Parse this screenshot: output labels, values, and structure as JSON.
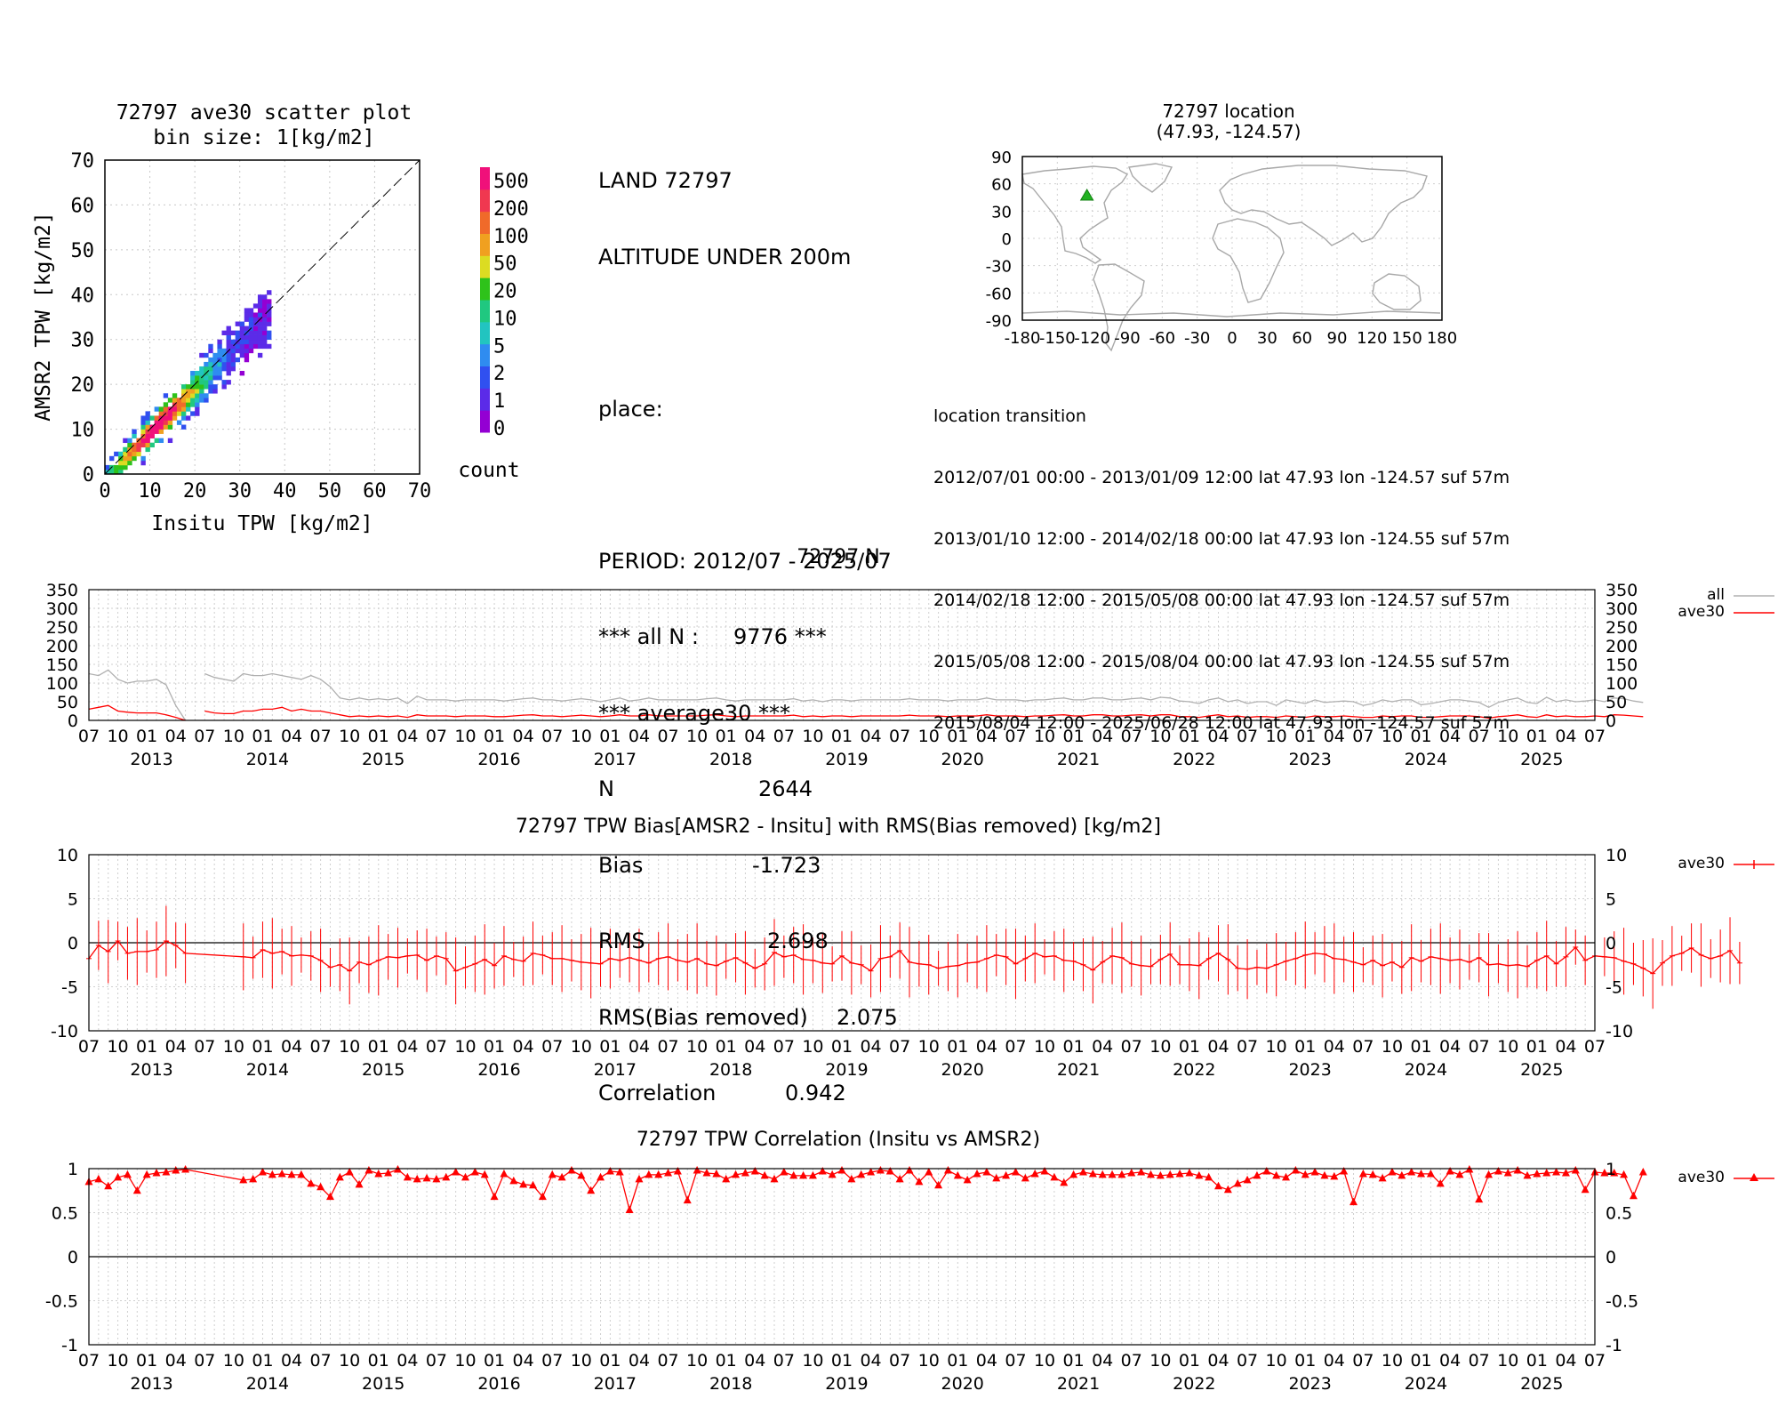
{
  "station": {
    "header_lines": [
      "LAND 72797",
      "ALTITUDE UNDER 200m",
      "",
      "place:",
      ""
    ],
    "stats": [
      {
        "label": "PERIOD: 2012/07 - 2025/07",
        "value": ""
      },
      {
        "label": "*** all N :",
        "value": "9776 ***"
      },
      {
        "label": "*** average30 ***",
        "value": ""
      },
      {
        "label": "N",
        "value": "2644"
      },
      {
        "label": "Bias",
        "value": "-1.723"
      },
      {
        "label": "RMS",
        "value": "2.698"
      },
      {
        "label": "RMS(Bias removed)",
        "value": "2.075"
      },
      {
        "label": "Correlation",
        "value": "0.942"
      }
    ]
  },
  "location_transition": {
    "title": "location transition",
    "lines": [
      "2012/07/01 00:00 - 2013/01/09 12:00 lat 47.93 lon -124.57 suf 57m",
      "2013/01/10 12:00 - 2014/02/18 00:00 lat 47.93 lon -124.55 suf 57m",
      "2014/02/18 12:00 - 2015/05/08 00:00 lat 47.93 lon -124.57 suf 57m",
      "2015/05/08 12:00 - 2015/08/04 00:00 lat 47.93 lon -124.55 suf 57m",
      "2015/08/04 12:00 - 2025/06/28 12:00 lat 47.93 lon -124.57 suf 57m"
    ]
  },
  "chart_data": [
    {
      "type": "heatmap",
      "title": "72797 ave30 scatter plot",
      "subtitle": "bin size: 1[kg/m2]",
      "xlabel": "Insitu TPW [kg/m2]",
      "ylabel": "AMSR2 TPW [kg/m2]",
      "xlim": [
        0,
        70
      ],
      "ylim": [
        0,
        70
      ],
      "xticks": [
        0,
        10,
        20,
        30,
        40,
        50,
        60,
        70
      ],
      "yticks": [
        0,
        10,
        20,
        30,
        40,
        50,
        60,
        70
      ],
      "diagonal": "1:1 dashed line",
      "colorbar": {
        "label": "count",
        "ticks": [
          "0",
          "1",
          "2",
          "5",
          "10",
          "20",
          "50",
          "100",
          "200",
          "500"
        ],
        "colors": [
          "#9400d3",
          "#5b2be8",
          "#3050f0",
          "#2f8cf0",
          "#22c4c0",
          "#20c880",
          "#2ec21a",
          "#dcdc22",
          "#f0a020",
          "#f06a2a",
          "#f03850",
          "#f0107a"
        ]
      },
      "note": "dense cluster along the 1:1 line from about 2 to 37 kg/m2, AMSR2 slightly below Insitu"
    },
    {
      "type": "map",
      "title": "72797 location",
      "subtitle": "(47.93, -124.57)",
      "marker": {
        "lat": 47.93,
        "lon": -124.57,
        "color": "#22b222",
        "symbol": "triangle"
      },
      "xticks": [
        -180,
        -150,
        -120,
        -90,
        -60,
        -30,
        0,
        30,
        60,
        90,
        120,
        150,
        180
      ],
      "yticks": [
        90,
        60,
        30,
        0,
        -30,
        -60,
        -90
      ]
    },
    {
      "type": "line",
      "title": "72797 N",
      "ylim": [
        0,
        350
      ],
      "yticks": [
        0,
        50,
        100,
        150,
        200,
        250,
        300,
        350
      ],
      "x_month_labels": [
        "07",
        "10",
        "01",
        "04"
      ],
      "years": [
        "2013",
        "2014",
        "2015",
        "2016",
        "2017",
        "2018",
        "2019",
        "2020",
        "2021",
        "2022",
        "2023",
        "2024",
        "2025"
      ],
      "series": [
        {
          "name": "all",
          "color": "#b0b0b0",
          "values": [
            125,
            120,
            135,
            110,
            100,
            105,
            105,
            110,
            95,
            40,
            0,
            null,
            125,
            115,
            110,
            105,
            125,
            120,
            120,
            125,
            120,
            115,
            110,
            120,
            110,
            90,
            60,
            55,
            60,
            55,
            58,
            55,
            60,
            45,
            65,
            55,
            55,
            55,
            52,
            55,
            55,
            55,
            55,
            52,
            55,
            58,
            60,
            55,
            55,
            52,
            55,
            58,
            55,
            50,
            55,
            60,
            52,
            55,
            60,
            55,
            55,
            55,
            55,
            55,
            58,
            60,
            55,
            52,
            55,
            55,
            55,
            55,
            55,
            58,
            52,
            55,
            50,
            55,
            55,
            52,
            55,
            55,
            55,
            55,
            55,
            58,
            55,
            55,
            55,
            52,
            55,
            55,
            55,
            60,
            55,
            55,
            55,
            52,
            55,
            55,
            58,
            60,
            55,
            55,
            60,
            60,
            55,
            55,
            58,
            60,
            55,
            62,
            60,
            52,
            50,
            45,
            55,
            60,
            50,
            55,
            45,
            50,
            50,
            40,
            55,
            50,
            45,
            55,
            48,
            50,
            52,
            50,
            40,
            45,
            55,
            50,
            55,
            55,
            42,
            45,
            50,
            55,
            55,
            52,
            48,
            35,
            48,
            55,
            60,
            48,
            45,
            62,
            50,
            55,
            50,
            52,
            55,
            50,
            60,
            58,
            52,
            48
          ]
        },
        {
          "name": "ave30",
          "color": "#ff0000",
          "values": [
            30,
            35,
            40,
            25,
            22,
            20,
            20,
            20,
            15,
            8,
            0,
            null,
            25,
            20,
            18,
            18,
            25,
            25,
            30,
            30,
            35,
            25,
            30,
            25,
            25,
            20,
            15,
            10,
            12,
            10,
            12,
            10,
            12,
            8,
            15,
            12,
            12,
            12,
            10,
            12,
            12,
            12,
            10,
            10,
            12,
            14,
            15,
            12,
            12,
            10,
            12,
            14,
            12,
            10,
            12,
            15,
            12,
            12,
            15,
            12,
            12,
            12,
            12,
            12,
            14,
            15,
            12,
            10,
            12,
            12,
            12,
            12,
            12,
            14,
            10,
            12,
            10,
            12,
            12,
            10,
            12,
            12,
            12,
            12,
            12,
            14,
            12,
            12,
            12,
            10,
            12,
            12,
            12,
            15,
            12,
            12,
            12,
            10,
            12,
            12,
            14,
            15,
            12,
            12,
            15,
            15,
            12,
            12,
            14,
            15,
            12,
            15,
            15,
            10,
            10,
            8,
            12,
            15,
            10,
            12,
            8,
            10,
            10,
            8,
            12,
            10,
            8,
            12,
            10,
            10,
            12,
            10,
            8,
            8,
            12,
            10,
            12,
            12,
            8,
            8,
            10,
            12,
            12,
            12,
            10,
            6,
            10,
            12,
            15,
            10,
            8,
            15,
            10,
            12,
            10,
            10,
            12,
            10,
            15,
            14,
            12,
            10
          ]
        }
      ]
    },
    {
      "type": "line",
      "title": "72797 TPW Bias[AMSR2 - Insitu] with RMS(Bias removed) [kg/m2]",
      "ylim": [
        -10,
        10
      ],
      "yticks": [
        -10,
        -5,
        0,
        5,
        10
      ],
      "x_month_labels": [
        "07",
        "10",
        "01",
        "04"
      ],
      "years": [
        "2013",
        "2014",
        "2015",
        "2016",
        "2017",
        "2018",
        "2019",
        "2020",
        "2021",
        "2022",
        "2023",
        "2024",
        "2025"
      ],
      "series": [
        {
          "name": "ave30",
          "color": "#ff0000",
          "marker": "+",
          "error_bars": "RMS(Bias removed)",
          "values": [
            -1.8,
            -0.3,
            -1.0,
            0.2,
            -1.2,
            -1.0,
            -1.0,
            -0.8,
            0.2,
            -0.3,
            -1.2,
            null,
            null,
            null,
            null,
            null,
            -1.6,
            -1.7,
            -0.8,
            -1.2,
            -1.0,
            -1.5,
            -1.4,
            -1.5,
            -2.0,
            -2.8,
            -2.5,
            -3.2,
            -2.2,
            -2.5,
            -2.0,
            -1.6,
            -1.7,
            -1.5,
            -1.4,
            -2.0,
            -1.5,
            -1.8,
            -3.2,
            -2.8,
            -2.4,
            -1.9,
            -2.6,
            -1.5,
            -1.9,
            -2.1,
            -1.2,
            -1.4,
            -1.8,
            -1.8,
            -2.0,
            -2.2,
            -2.3,
            -2.4,
            -1.8,
            -2.0,
            -1.7,
            -2.0,
            -2.3,
            -1.8,
            -1.6,
            -2.0,
            -2.2,
            -1.8,
            -2.4,
            -2.6,
            -2.1,
            -1.7,
            -2.3,
            -2.9,
            -2.4,
            -1.1,
            -1.6,
            -1.4,
            -1.9,
            -2.0,
            -2.3,
            -2.4,
            -1.5,
            -2.3,
            -2.5,
            -3.2,
            -1.8,
            -1.6,
            -0.9,
            -2.2,
            -2.4,
            -2.5,
            -2.9,
            -2.7,
            -2.6,
            -2.3,
            -2.2,
            -1.8,
            -1.4,
            -1.6,
            -2.4,
            -1.8,
            -1.2,
            -1.6,
            -1.5,
            -2.0,
            -2.1,
            -2.5,
            -3.1,
            -2.2,
            -1.5,
            -1.7,
            -2.4,
            -2.6,
            -2.7,
            -1.9,
            -1.3,
            -2.5,
            -2.5,
            -2.6,
            -1.8,
            -1.2,
            -1.9,
            -2.9,
            -3.0,
            -2.8,
            -2.9,
            -2.5,
            -2.1,
            -1.8,
            -1.4,
            -1.2,
            -1.3,
            -1.8,
            -1.9,
            -2.2,
            -2.5,
            -2.0,
            -2.6,
            -2.2,
            -2.8,
            -1.7,
            -2.1,
            -1.6,
            -1.8,
            -2.0,
            -1.9,
            -2.2,
            -1.7,
            -2.5,
            -2.4,
            -2.6,
            -2.5,
            -2.7,
            -2.0,
            -1.5,
            -2.4,
            -1.6,
            -0.5,
            -2.0,
            -1.5,
            -1.6,
            -1.7,
            -2.1,
            -2.4,
            -2.9,
            -3.5,
            -2.3,
            -1.5,
            -1.2,
            -0.6,
            -1.4,
            -1.8,
            -1.5,
            -0.9,
            -2.3
          ]
        }
      ]
    },
    {
      "type": "line",
      "title": "72797 TPW Correlation (Insitu vs AMSR2)",
      "ylim": [
        -1,
        1
      ],
      "yticks": [
        -1,
        -0.5,
        0,
        0.5,
        1
      ],
      "x_month_labels": [
        "07",
        "10",
        "01",
        "04"
      ],
      "years": [
        "2013",
        "2014",
        "2015",
        "2016",
        "2017",
        "2018",
        "2019",
        "2020",
        "2021",
        "2022",
        "2023",
        "2024",
        "2025"
      ],
      "series": [
        {
          "name": "ave30",
          "color": "#ff0000",
          "marker": "triangle",
          "values": [
            0.85,
            0.88,
            0.8,
            0.9,
            0.93,
            0.75,
            0.93,
            0.95,
            0.96,
            0.98,
            0.99,
            null,
            null,
            null,
            null,
            null,
            0.87,
            0.88,
            0.96,
            0.93,
            0.94,
            0.93,
            0.93,
            0.83,
            0.79,
            0.68,
            0.9,
            0.96,
            0.82,
            0.98,
            0.94,
            0.95,
            0.99,
            0.9,
            0.88,
            0.89,
            0.88,
            0.9,
            0.96,
            0.9,
            0.96,
            0.93,
            0.68,
            0.94,
            0.86,
            0.82,
            0.81,
            0.68,
            0.93,
            0.9,
            0.98,
            0.92,
            0.75,
            0.9,
            0.97,
            0.96,
            0.53,
            0.88,
            0.93,
            0.93,
            0.95,
            0.97,
            0.64,
            0.98,
            0.95,
            0.94,
            0.88,
            0.93,
            0.95,
            0.97,
            0.92,
            0.88,
            0.96,
            0.92,
            0.92,
            0.92,
            0.97,
            0.93,
            0.98,
            0.88,
            0.93,
            0.96,
            0.98,
            0.97,
            0.88,
            0.98,
            0.85,
            0.96,
            0.81,
            0.98,
            0.92,
            0.87,
            0.94,
            0.96,
            0.89,
            0.92,
            0.96,
            0.89,
            0.94,
            0.97,
            0.9,
            0.84,
            0.93,
            0.96,
            0.94,
            0.93,
            0.93,
            0.93,
            0.95,
            0.96,
            0.93,
            0.92,
            0.93,
            0.94,
            0.95,
            0.92,
            0.9,
            0.8,
            0.76,
            0.83,
            0.87,
            0.92,
            0.97,
            0.92,
            0.9,
            0.98,
            0.93,
            0.96,
            0.92,
            0.91,
            0.97,
            0.62,
            0.94,
            0.93,
            0.89,
            0.96,
            0.92,
            0.96,
            0.94,
            0.94,
            0.83,
            0.97,
            0.93,
            0.99,
            0.65,
            0.93,
            0.97,
            0.95,
            0.98,
            0.92,
            0.94,
            0.95,
            0.96,
            0.95,
            0.98,
            0.76,
            0.96,
            0.95,
            0.95,
            0.93,
            0.69,
            0.96
          ]
        }
      ]
    }
  ]
}
